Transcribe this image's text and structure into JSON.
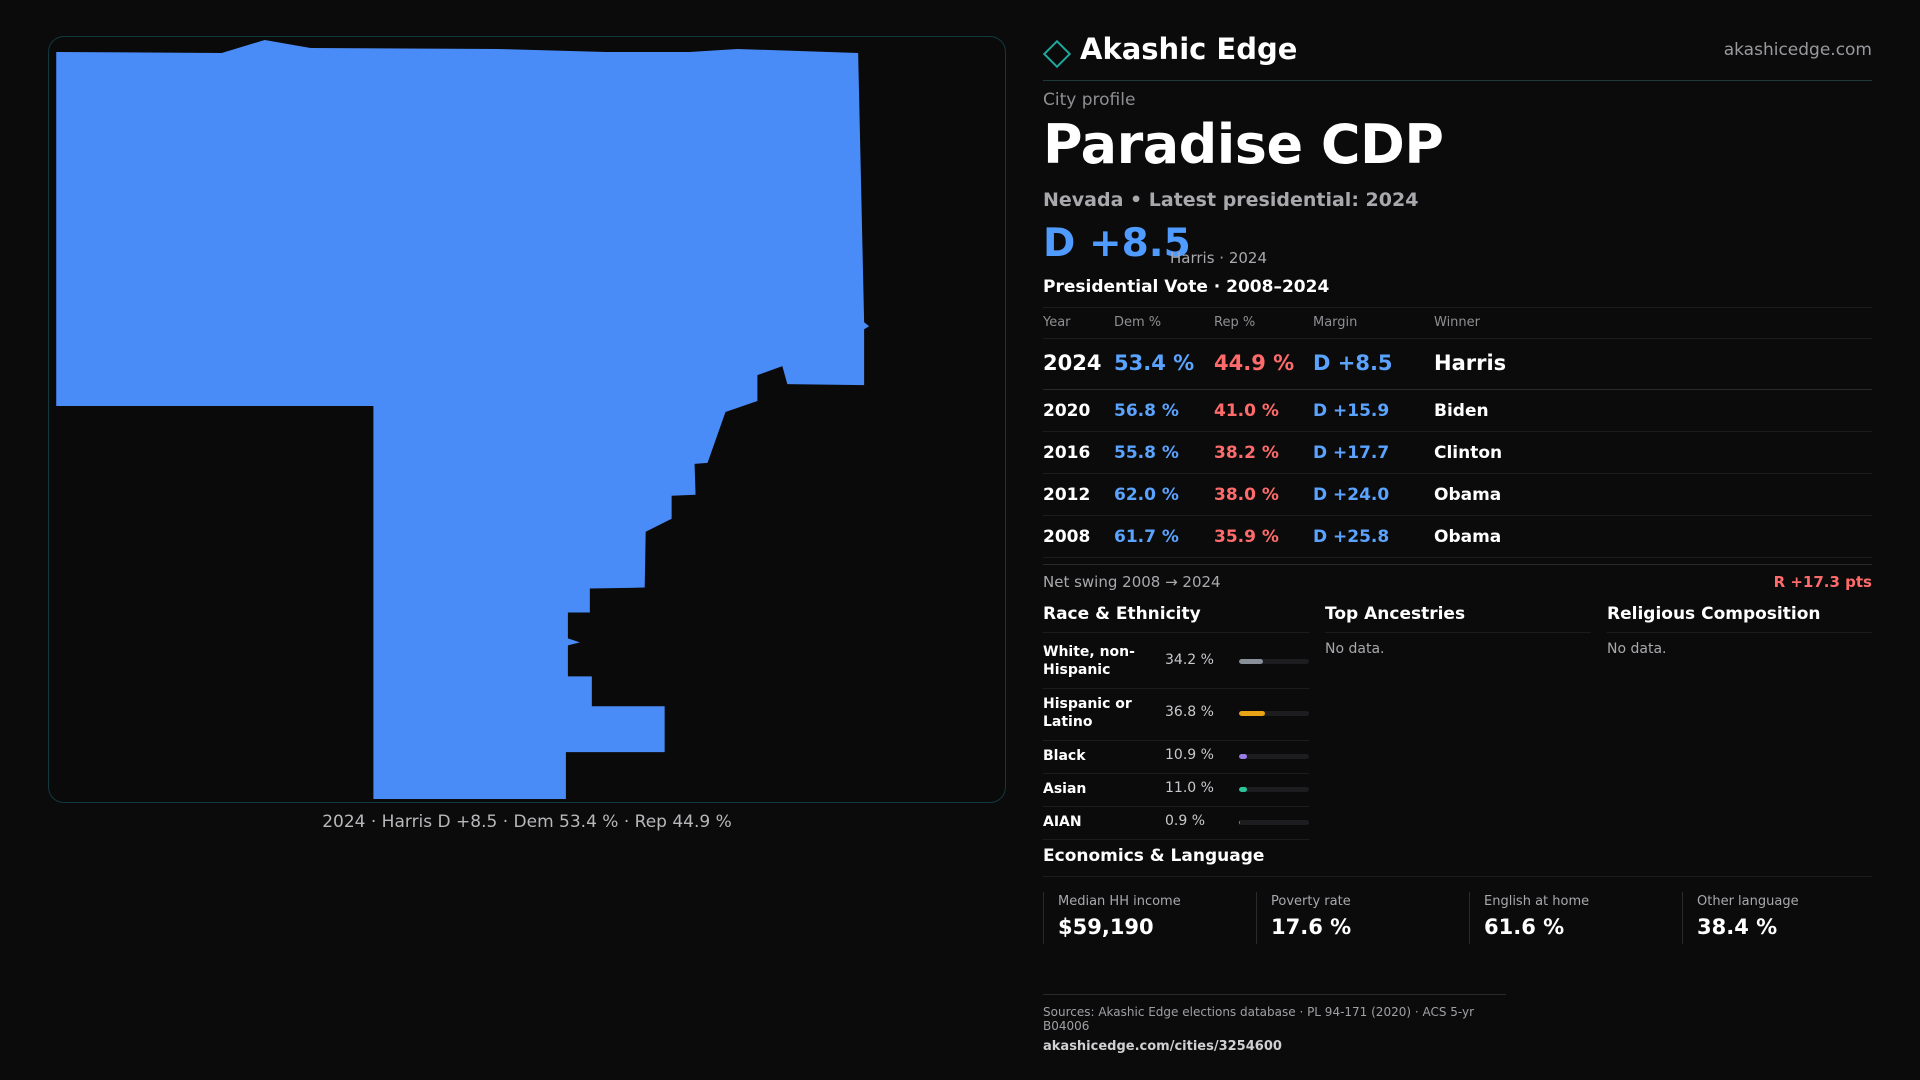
{
  "map": {
    "caption": "2024 · Harris D +8.5 · Dem 53.4 % · Rep 44.9 %",
    "fill_color": "#4a8cf7"
  },
  "brand": {
    "name": "Akashic Edge",
    "url": "akashicedge.com",
    "accent": "#1fa89b"
  },
  "profile": {
    "eyebrow": "City profile",
    "title": "Paradise CDP",
    "subline": "Nevada • Latest presidential: 2024",
    "margin_big": "D +8.5",
    "margin_sub": "Harris · 2024"
  },
  "vote": {
    "title": "Presidential Vote · 2008–2024",
    "headers": {
      "year": "Year",
      "dem": "Dem %",
      "rep": "Rep %",
      "margin": "Margin",
      "winner": "Winner"
    },
    "rows": [
      {
        "year": "2024",
        "dem": "53.4 %",
        "rep": "44.9 %",
        "margin": "D +8.5",
        "winner": "Harris"
      },
      {
        "year": "2020",
        "dem": "56.8 %",
        "rep": "41.0 %",
        "margin": "D +15.9",
        "winner": "Biden"
      },
      {
        "year": "2016",
        "dem": "55.8 %",
        "rep": "38.2 %",
        "margin": "D +17.7",
        "winner": "Clinton"
      },
      {
        "year": "2012",
        "dem": "62.0 %",
        "rep": "38.0 %",
        "margin": "D +24.0",
        "winner": "Obama"
      },
      {
        "year": "2008",
        "dem": "61.7 %",
        "rep": "35.9 %",
        "margin": "D +25.8",
        "winner": "Obama"
      }
    ],
    "swing_label": "Net swing 2008 → 2024",
    "swing_value": "R +17.3 pts"
  },
  "race": {
    "title": "Race & Ethnicity",
    "rows": [
      {
        "label": "White, non-Hispanic",
        "pct": "34.2 %",
        "value": 34.2,
        "color": "#8a9099"
      },
      {
        "label": "Hispanic or Latino",
        "pct": "36.8 %",
        "value": 36.8,
        "color": "#e8a317"
      },
      {
        "label": "Black",
        "pct": "10.9 %",
        "value": 10.9,
        "color": "#9b7be8"
      },
      {
        "label": "Asian",
        "pct": "11.0 %",
        "value": 11.0,
        "color": "#2cc59a"
      },
      {
        "label": "AIAN",
        "pct": "0.9 %",
        "value": 0.9,
        "color": "#e2553d"
      }
    ]
  },
  "ancestries": {
    "title": "Top Ancestries",
    "empty": "No data."
  },
  "religion": {
    "title": "Religious Composition",
    "empty": "No data."
  },
  "economics": {
    "title": "Economics & Language",
    "cells": [
      {
        "label": "Median HH income",
        "value": "$59,190"
      },
      {
        "label": "Poverty rate",
        "value": "17.6 %"
      },
      {
        "label": "English at home",
        "value": "61.6 %"
      },
      {
        "label": "Other language",
        "value": "38.4 %"
      }
    ]
  },
  "sources": {
    "text": "Sources: Akashic Edge elections database · PL 94-171 (2020) · ACS 5-yr B04006",
    "url": "akashicedge.com/cities/3254600"
  }
}
